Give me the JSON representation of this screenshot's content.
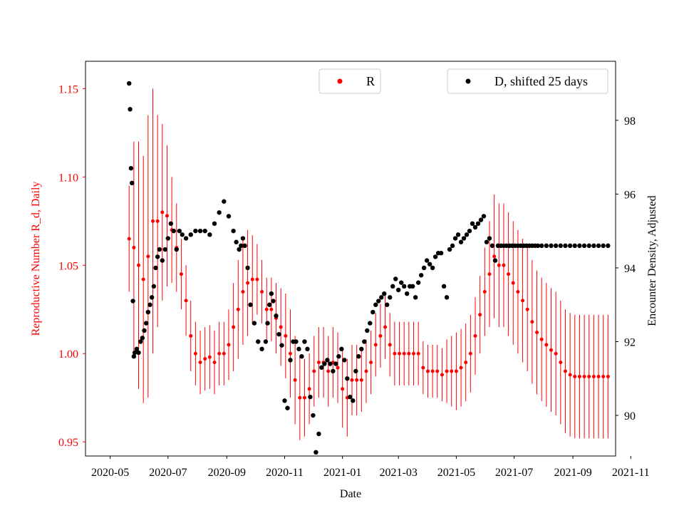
{
  "chart_data": {
    "type": "scatter",
    "title": "",
    "xlabel": "Date",
    "ylabel_left": "Reproductive Number R_d, Daily",
    "ylabel_right": "Encounter Density, Adjusted",
    "x_ticks": [
      "2020-05",
      "2020-07",
      "2020-09",
      "2020-11",
      "2021-01",
      "2021-03",
      "2021-05",
      "2021-07",
      "2021-09",
      "2021-11"
    ],
    "y_left_ticks": [
      "0.95",
      "1.00",
      "1.05",
      "1.10",
      "1.15"
    ],
    "y_right_ticks": [
      "90",
      "92",
      "94",
      "96",
      "98"
    ],
    "ylim_left": [
      0.942,
      1.1655
    ],
    "ylim_right": [
      88.9,
      99.6
    ],
    "xlim_days": [
      -26,
      533
    ],
    "x_origin": "2020-05-01",
    "colors": {
      "R": "#ff0000",
      "D": "#000000",
      "left_axis": "#ff0000",
      "right_axis": "#000000"
    },
    "legend_R": {
      "label": "R",
      "placement": "top-center"
    },
    "legend_D": {
      "label": "D, shifted 25 days",
      "placement": "top-right"
    },
    "series": [
      {
        "name": "R",
        "axis": "left",
        "style": "points with vertical error bars",
        "day": [
          20,
          25,
          30,
          35,
          40,
          45,
          50,
          55,
          60,
          65,
          70,
          75,
          80,
          85,
          90,
          95,
          100,
          105,
          110,
          115,
          120,
          125,
          130,
          135,
          140,
          145,
          150,
          155,
          160,
          165,
          170,
          175,
          180,
          185,
          190,
          195,
          200,
          205,
          210,
          215,
          220,
          225,
          230,
          235,
          240,
          245,
          250,
          255,
          260,
          265,
          270,
          275,
          280,
          285,
          290,
          295,
          300,
          305,
          310,
          315,
          320,
          325,
          330,
          335,
          340,
          345,
          350,
          355,
          360,
          365,
          370,
          375,
          380,
          385,
          390,
          395,
          400,
          405,
          410,
          415,
          420,
          425,
          430,
          435,
          440,
          445,
          450,
          455,
          460,
          465,
          470,
          475,
          480,
          485,
          490,
          495,
          500,
          505,
          510,
          515,
          520,
          525
        ],
        "values": [
          1.065,
          1.06,
          1.05,
          1.042,
          1.055,
          1.075,
          1.075,
          1.08,
          1.078,
          1.07,
          1.06,
          1.045,
          1.03,
          1.01,
          1.0,
          0.995,
          0.997,
          0.998,
          0.995,
          1.0,
          1.0,
          1.005,
          1.015,
          1.025,
          1.035,
          1.04,
          1.042,
          1.042,
          1.035,
          1.025,
          1.025,
          1.02,
          1.015,
          1.01,
          1.0,
          0.985,
          0.975,
          0.975,
          0.98,
          0.99,
          0.995,
          0.995,
          0.99,
          0.995,
          0.992,
          0.98,
          0.975,
          0.985,
          0.985,
          0.985,
          0.99,
          0.995,
          1.005,
          1.01,
          1.015,
          1.005,
          1.0,
          1.0,
          1.0,
          1.0,
          1.0,
          1.0,
          0.992,
          0.99,
          0.99,
          0.99,
          0.988,
          0.99,
          0.99,
          0.99,
          0.992,
          0.995,
          1.0,
          1.01,
          1.022,
          1.035,
          1.045,
          1.055,
          1.05,
          1.05,
          1.045,
          1.04,
          1.035,
          1.03,
          1.025,
          1.018,
          1.012,
          1.008,
          1.005,
          1.002,
          1.0,
          0.995,
          0.99,
          0.988,
          0.987,
          0.987,
          0.987,
          0.987,
          0.987,
          0.987,
          0.987,
          0.987
        ],
        "errors": [
          0.03,
          0.06,
          0.07,
          0.07,
          0.08,
          0.075,
          0.06,
          0.05,
          0.04,
          0.03,
          0.025,
          0.02,
          0.02,
          0.02,
          0.018,
          0.018,
          0.018,
          0.018,
          0.018,
          0.018,
          0.018,
          0.02,
          0.025,
          0.028,
          0.03,
          0.03,
          0.025,
          0.02,
          0.018,
          0.018,
          0.018,
          0.02,
          0.022,
          0.024,
          0.025,
          0.025,
          0.024,
          0.022,
          0.02,
          0.02,
          0.02,
          0.02,
          0.02,
          0.02,
          0.02,
          0.022,
          0.022,
          0.02,
          0.02,
          0.018,
          0.018,
          0.018,
          0.018,
          0.018,
          0.018,
          0.018,
          0.018,
          0.018,
          0.018,
          0.018,
          0.018,
          0.018,
          0.015,
          0.015,
          0.015,
          0.015,
          0.015,
          0.018,
          0.02,
          0.022,
          0.022,
          0.022,
          0.022,
          0.022,
          0.022,
          0.025,
          0.03,
          0.035,
          0.035,
          0.035,
          0.035,
          0.035,
          0.035,
          0.035,
          0.035,
          0.035,
          0.035,
          0.035,
          0.035,
          0.035,
          0.035,
          0.035,
          0.035,
          0.035,
          0.035,
          0.035,
          0.035,
          0.035,
          0.035,
          0.035,
          0.035,
          0.035
        ]
      },
      {
        "name": "D, shifted 25 days",
        "axis": "right",
        "style": "points",
        "day": [
          20,
          21,
          22,
          23,
          24,
          25,
          26,
          28,
          30,
          32,
          34,
          36,
          38,
          40,
          42,
          44,
          46,
          48,
          50,
          52,
          55,
          58,
          61,
          64,
          67,
          70,
          73,
          76,
          80,
          85,
          90,
          95,
          100,
          105,
          110,
          115,
          120,
          125,
          130,
          133,
          136,
          138,
          140,
          142,
          145,
          148,
          152,
          156,
          160,
          164,
          166,
          168,
          170,
          172,
          175,
          178,
          181,
          184,
          187,
          190,
          193,
          196,
          199,
          202,
          205,
          208,
          211,
          214,
          217,
          220,
          223,
          226,
          229,
          232,
          235,
          238,
          241,
          244,
          247,
          250,
          253,
          256,
          259,
          262,
          265,
          268,
          271,
          274,
          277,
          280,
          283,
          286,
          289,
          292,
          295,
          298,
          301,
          304,
          307,
          310,
          313,
          316,
          319,
          322,
          325,
          328,
          331,
          334,
          337,
          340,
          343,
          346,
          349,
          352,
          355,
          358,
          361,
          364,
          367,
          370,
          373,
          376,
          379,
          382,
          385,
          388,
          391,
          394,
          397,
          400,
          403,
          406,
          409,
          412,
          415,
          418,
          421,
          424,
          427,
          430,
          433,
          436,
          439,
          442,
          445,
          448,
          451,
          455,
          460,
          465,
          470,
          475,
          480,
          485,
          490,
          495,
          500,
          505,
          510,
          515,
          520,
          525
        ],
        "values": [
          99.0,
          98.3,
          96.7,
          96.3,
          93.1,
          91.6,
          91.7,
          91.8,
          91.7,
          92.0,
          92.1,
          92.3,
          92.5,
          92.8,
          93.0,
          93.2,
          93.5,
          94.0,
          94.3,
          94.5,
          94.2,
          94.5,
          94.8,
          95.2,
          95.0,
          94.5,
          95.0,
          94.9,
          94.8,
          94.9,
          95.0,
          95.0,
          95.0,
          94.9,
          95.2,
          95.5,
          95.8,
          95.4,
          95.0,
          94.7,
          94.5,
          94.6,
          94.8,
          94.6,
          94.0,
          93.0,
          92.5,
          92.0,
          91.8,
          92.0,
          92.5,
          93.0,
          93.3,
          93.1,
          92.7,
          92.2,
          91.9,
          90.4,
          90.2,
          91.5,
          92.0,
          92.0,
          91.8,
          91.6,
          92.0,
          91.8,
          90.5,
          90.0,
          89.0,
          89.5,
          91.3,
          91.4,
          91.5,
          91.4,
          91.2,
          91.4,
          91.6,
          91.8,
          91.5,
          91.0,
          90.5,
          90.4,
          91.2,
          91.6,
          91.8,
          92.0,
          92.3,
          92.5,
          92.8,
          93.0,
          93.1,
          93.2,
          93.3,
          93.0,
          93.2,
          93.5,
          93.7,
          93.4,
          93.6,
          93.5,
          93.3,
          93.5,
          93.5,
          93.2,
          93.6,
          93.8,
          94.0,
          94.2,
          94.1,
          94.0,
          94.3,
          94.4,
          94.4,
          93.5,
          93.2,
          94.5,
          94.6,
          94.8,
          94.9,
          94.7,
          94.8,
          94.9,
          95.0,
          95.2,
          95.1,
          95.2,
          95.3,
          95.4,
          94.7,
          94.8,
          94.6,
          94.2,
          94.6,
          94.6,
          94.6,
          94.6,
          94.6,
          94.6,
          94.6,
          94.6,
          94.6,
          94.6,
          94.6,
          94.6,
          94.6,
          94.6,
          94.6,
          94.6,
          94.6,
          94.6,
          94.6,
          94.6,
          94.6,
          94.6,
          94.6,
          94.6,
          94.6,
          94.6,
          94.6,
          94.6,
          94.6,
          94.6,
          94.6,
          94.6,
          94.6,
          94.6
        ]
      }
    ]
  }
}
